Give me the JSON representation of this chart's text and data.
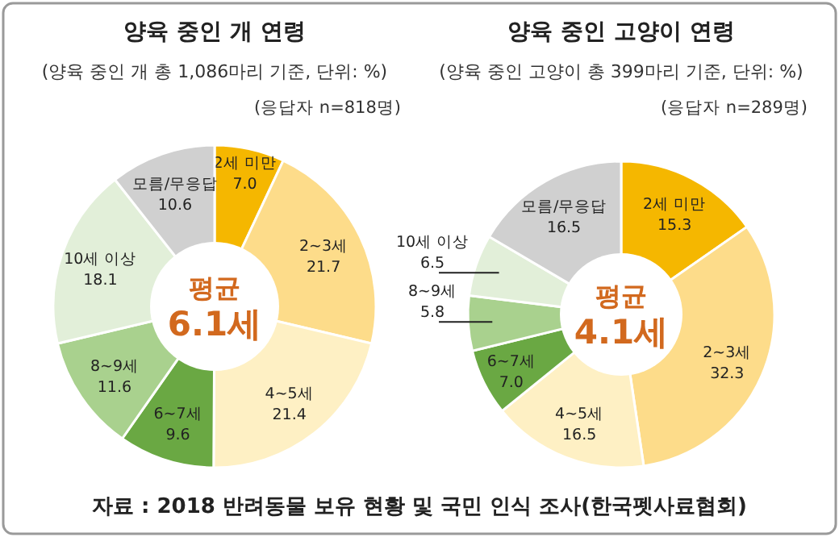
{
  "chart_data": [
    {
      "type": "donut",
      "title": "양육 중인 개 연령",
      "subtitle": "(양육 중인 개 총 1,086마리 기준, 단위: %)",
      "annotations": [
        "(응답자 n=818명)",
        "평균",
        "6.1세",
        "자료 : 2018 반려동물 보유 현황 및 국민 인식 조사(한국펫사료협회)"
      ],
      "categories": [
        "2세 미만",
        "2~3세",
        "4~5세",
        "6~7세",
        "8~9세",
        "10세 이상",
        "모름/무응답"
      ],
      "values": [
        7.0,
        21.7,
        21.4,
        9.6,
        11.6,
        18.1,
        10.6
      ],
      "value_labels": [
        "7.0",
        "21.7",
        "21.4",
        "9.6",
        "11.6",
        "18.1",
        "10.6"
      ],
      "colors": [
        "#f5b700",
        "#fddc8a",
        "#fef0c4",
        "#6aa843",
        "#a9d18e",
        "#e2efd9",
        "#d0d0d0"
      ]
    },
    {
      "type": "donut",
      "title": "양육 중인 고양이 연령",
      "subtitle": "(양육 중인 고양이 총 399마리 기준, 단위: %)",
      "annotations": [
        "(응답자 n=289명)",
        "평균",
        "4.1세"
      ],
      "categories": [
        "2세 미만",
        "2~3세",
        "4~5세",
        "6~7세",
        "8~9세",
        "10세 이상",
        "모름/무응답"
      ],
      "values": [
        15.3,
        32.3,
        16.5,
        7.0,
        5.8,
        6.5,
        16.5
      ],
      "value_labels": [
        "15.3",
        "32.3",
        "16.5",
        "7.0",
        "5.8",
        "6.5",
        "16.5"
      ],
      "colors": [
        "#f5b700",
        "#fddc8a",
        "#fef0c4",
        "#6aa843",
        "#a9d18e",
        "#e2efd9",
        "#d0d0d0"
      ]
    }
  ]
}
